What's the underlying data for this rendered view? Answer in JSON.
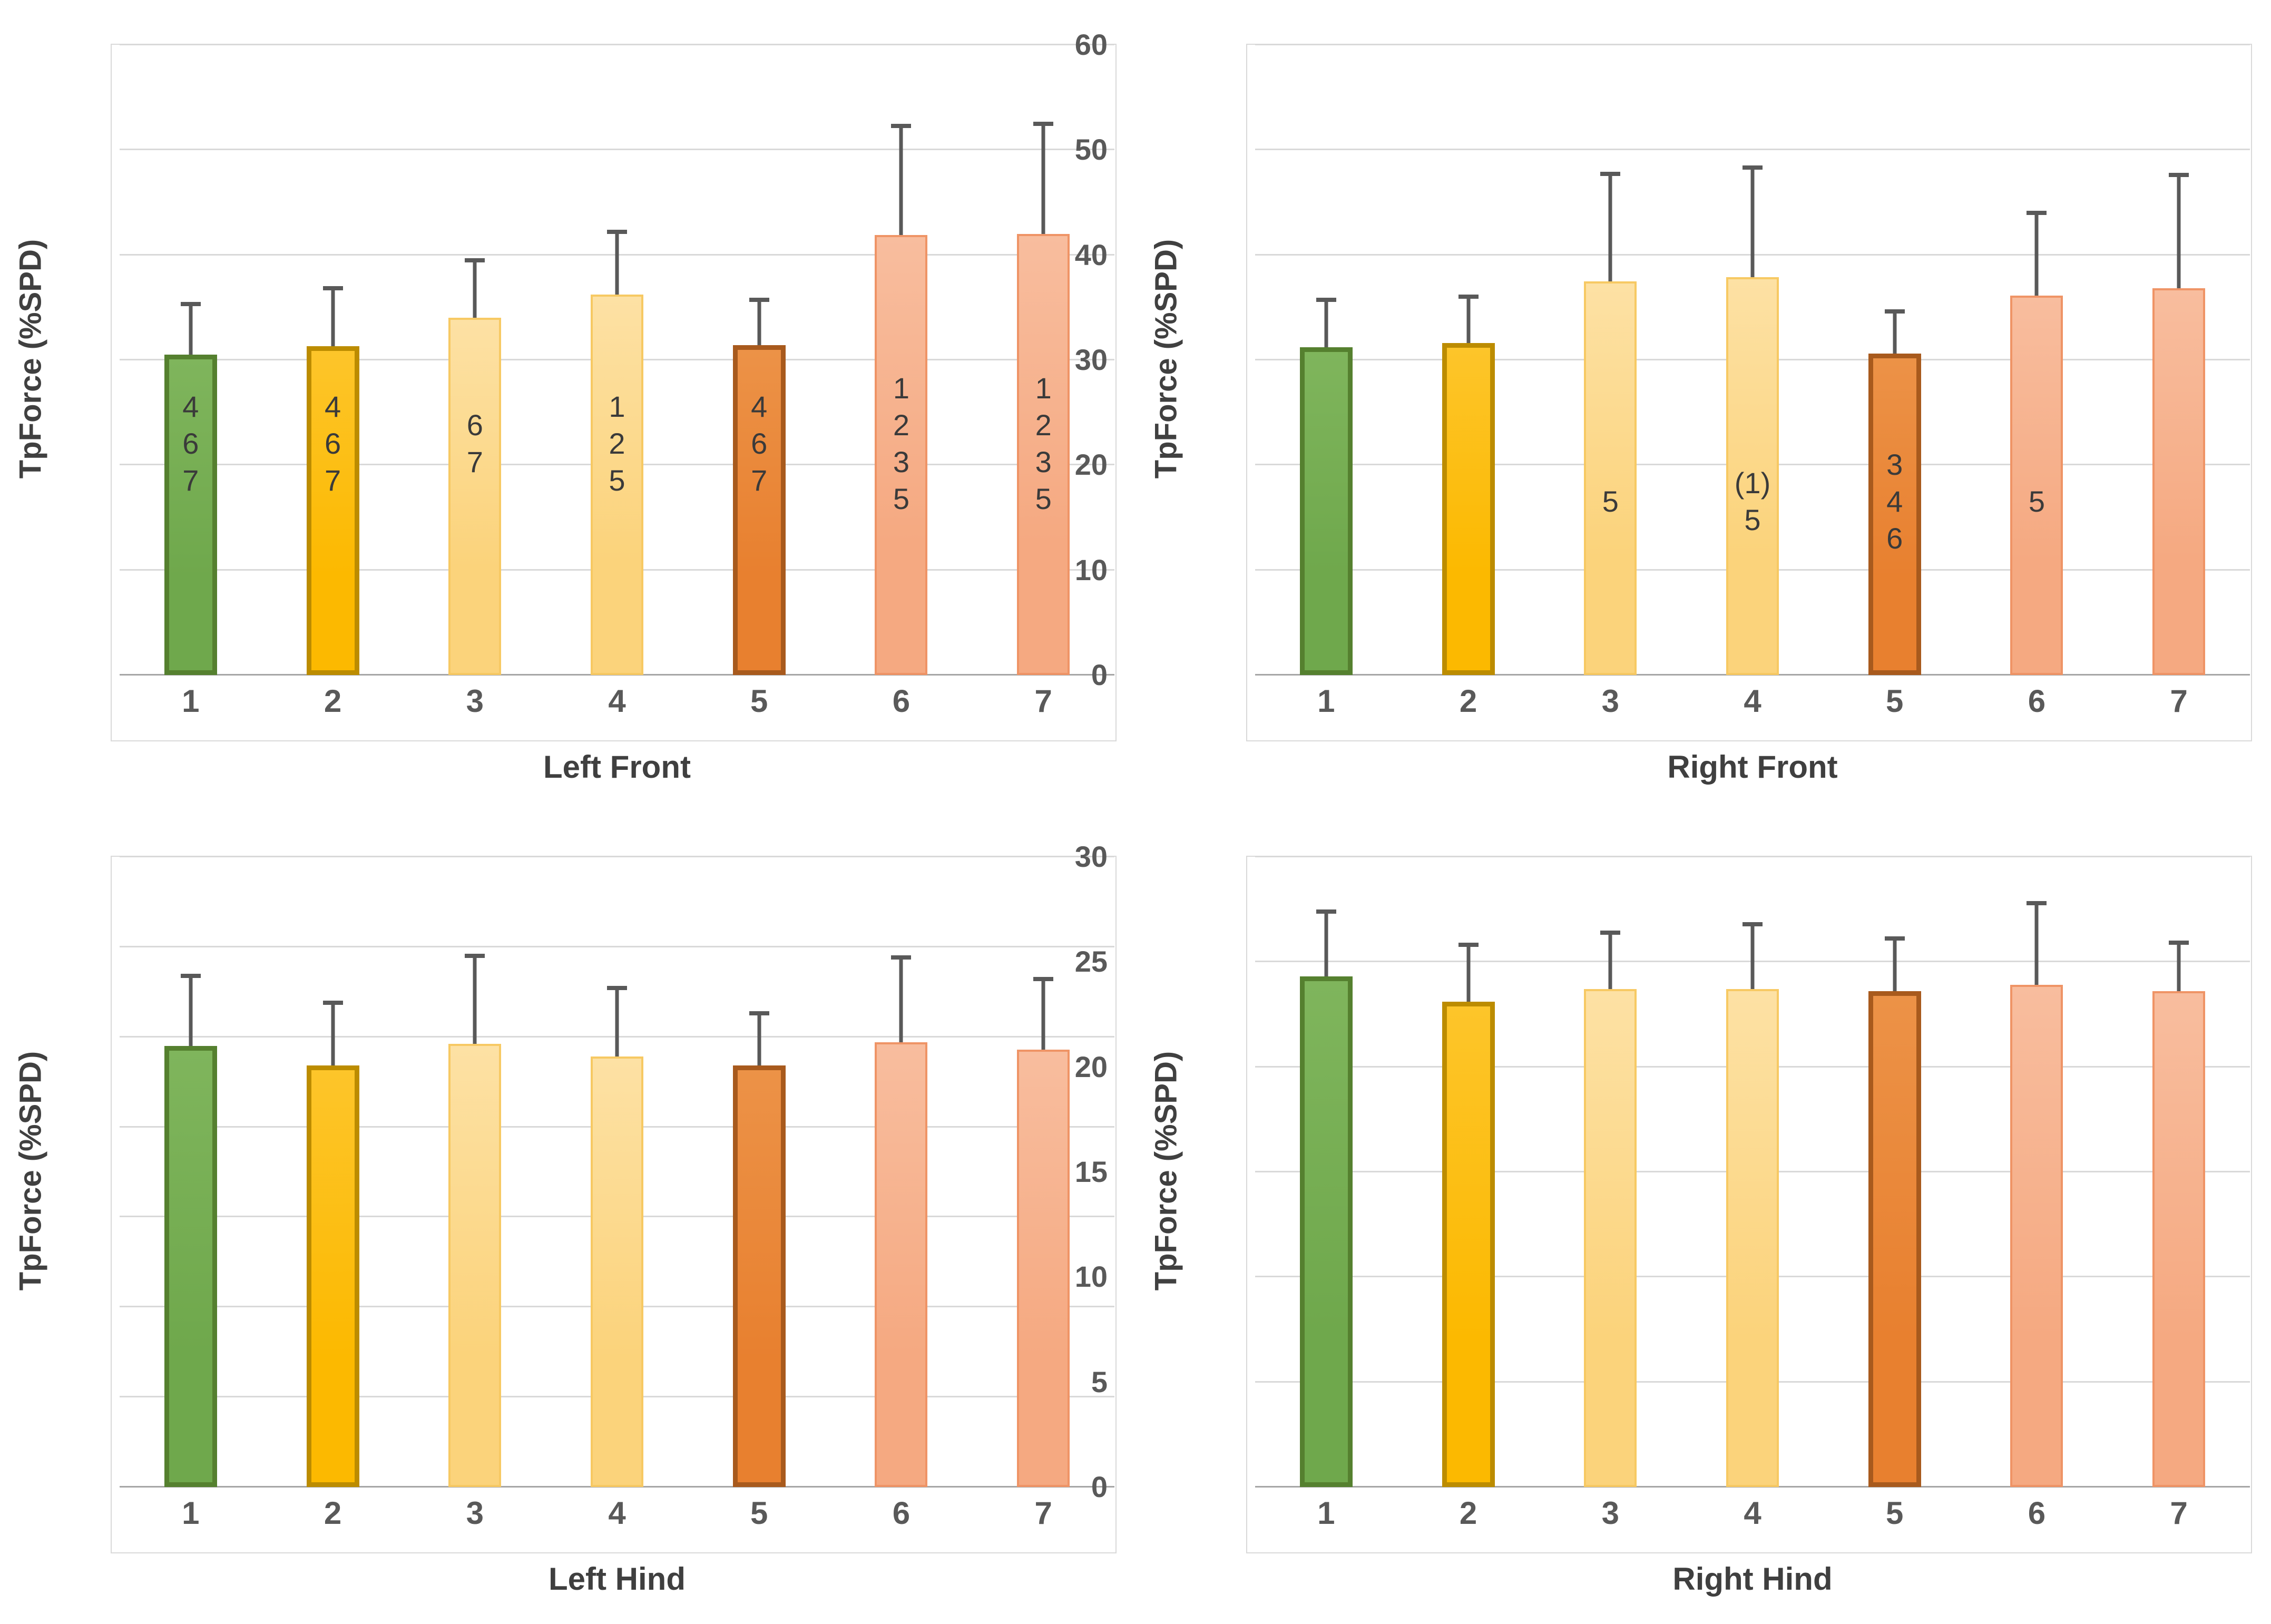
{
  "figure_title": "",
  "shared": {
    "ylabel": "TpForce (%SPD)",
    "grid_color": "#d9d9d9",
    "zero_line_color": "#a6a6a6",
    "error_bar_color": "#595959",
    "tick_text_color": "#595959",
    "title_text_color": "#3f3f3f"
  },
  "palette": {
    "green": {
      "fill": "#6fa84c",
      "top": "#7fb55c",
      "border": "#55802f"
    },
    "gold": {
      "fill": "#fcb900",
      "top": "#fdc52a",
      "border": "#bc8c00"
    },
    "lightgold": {
      "fill": "#fbd37b",
      "top": "#fde1a4",
      "border": "#f7c963"
    },
    "orange": {
      "fill": "#e8802f",
      "top": "#ec9247",
      "border": "#a85a1d"
    },
    "salmon": {
      "fill": "#f5a981",
      "top": "#f8bd9e",
      "border": "#ef9466"
    }
  },
  "bar_color_keys": [
    "green",
    "gold",
    "lightgold",
    "lightgold",
    "orange",
    "salmon",
    "salmon"
  ],
  "chart_data": [
    {
      "type": "bar",
      "title": "Left Front",
      "ylabel": "TpForce (%SPD)",
      "categories": [
        "1",
        "2",
        "3",
        "4",
        "5",
        "6",
        "7"
      ],
      "values": [
        30.5,
        31.3,
        34.0,
        36.2,
        31.4,
        41.9,
        42.0
      ],
      "error_top": [
        35.3,
        36.8,
        39.5,
        42.2,
        35.7,
        52.3,
        52.5
      ],
      "annotations": [
        [
          "4",
          "6",
          "7"
        ],
        [
          "4",
          "6",
          "7"
        ],
        [
          "6",
          "7"
        ],
        [
          "1",
          "2",
          "5"
        ],
        [
          "4",
          "6",
          "7"
        ],
        [
          "1",
          "2",
          "3",
          "5"
        ],
        [
          "1",
          "2",
          "3",
          "5"
        ]
      ],
      "annotation_center": 22,
      "ylim": [
        0,
        60
      ],
      "ytick_step": 10,
      "grid": true,
      "legend": null
    },
    {
      "type": "bar",
      "title": "Right Front",
      "ylabel": "TpForce (%SPD)",
      "categories": [
        "1",
        "2",
        "3",
        "4",
        "5",
        "6",
        "7"
      ],
      "values": [
        31.2,
        31.6,
        37.5,
        37.9,
        30.6,
        36.1,
        36.8
      ],
      "error_top": [
        35.7,
        36.0,
        47.7,
        48.3,
        34.6,
        44.0,
        47.6
      ],
      "annotations": [
        null,
        null,
        [
          "5"
        ],
        [
          "(1)",
          "5"
        ],
        [
          "3",
          "4",
          "6"
        ],
        [
          "5"
        ],
        null
      ],
      "annotation_center": 16.5,
      "ylim": [
        0,
        60
      ],
      "ytick_step": 10,
      "grid": true,
      "legend": null
    },
    {
      "type": "bar",
      "title": "Left Hind",
      "ylabel": "TpForce (%SPD)",
      "categories": [
        "1",
        "2",
        "3",
        "4",
        "5",
        "6",
        "7"
      ],
      "values": [
        24.5,
        23.4,
        24.6,
        23.9,
        23.4,
        24.7,
        24.3
      ],
      "error_top": [
        28.4,
        26.9,
        29.5,
        27.7,
        26.3,
        29.4,
        28.2
      ],
      "annotations": [
        null,
        null,
        null,
        null,
        null,
        null,
        null
      ],
      "annotation_center": null,
      "ylim": [
        0,
        35
      ],
      "ytick_step": 5,
      "grid": true,
      "legend": null
    },
    {
      "type": "bar",
      "title": "Right Hind",
      "ylabel": "TpForce (%SPD)",
      "categories": [
        "1",
        "2",
        "3",
        "4",
        "5",
        "6",
        "7"
      ],
      "values": [
        24.3,
        23.1,
        23.7,
        23.7,
        23.6,
        23.9,
        23.6
      ],
      "error_top": [
        27.4,
        25.8,
        26.4,
        26.8,
        26.1,
        27.8,
        25.9
      ],
      "annotations": [
        null,
        null,
        null,
        null,
        null,
        null,
        null
      ],
      "annotation_center": null,
      "ylim": [
        0,
        30
      ],
      "ytick_step": 5,
      "grid": true,
      "legend": null
    }
  ]
}
